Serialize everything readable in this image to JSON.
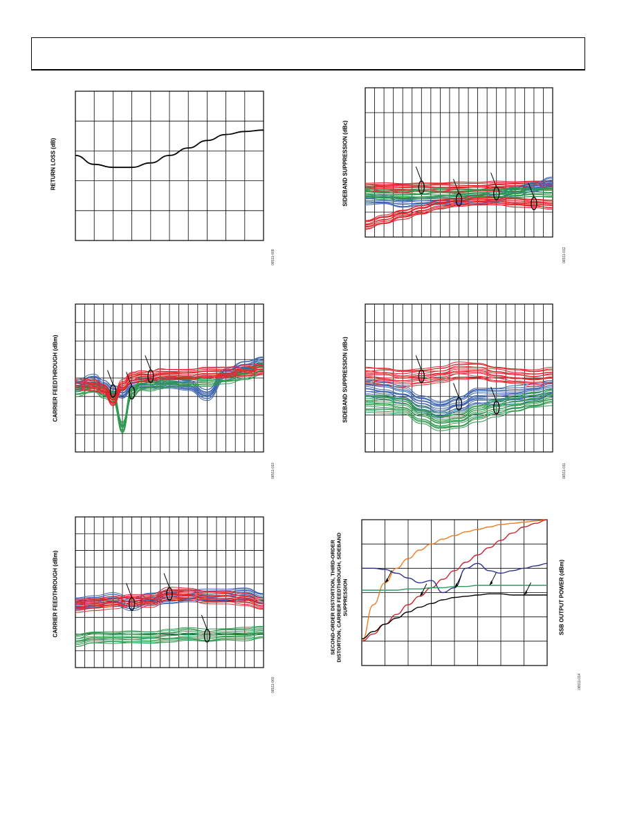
{
  "colors": {
    "red": "#e3242b",
    "blue": "#3f66b0",
    "green": "#2e9a4e",
    "black": "#000000",
    "orange": "#f07a1e",
    "darkred": "#c8232c",
    "navy": "#27318a",
    "teal": "#2f9a62"
  },
  "panels": [
    {
      "id": "return-loss",
      "ylabel": "RETURN LOSS (dB)",
      "figure_id": "06511-009"
    },
    {
      "id": "sideband-1",
      "ylabel": "SIDEBAND SUPPRESSION (dBc)",
      "figure_id": "06511-012"
    },
    {
      "id": "carrier-1",
      "ylabel": "CARRIER FEEDTHROUGH (dBm)",
      "figure_id": "06511-010"
    },
    {
      "id": "sideband-2",
      "ylabel": "SIDEBAND SUPPRESSION (dBc)",
      "figure_id": "06511-011"
    },
    {
      "id": "carrier-2",
      "ylabel": "CARRIER FEEDTHROUGH (dBm)",
      "figure_id": "06511-060"
    },
    {
      "id": "distortion",
      "ylabel": "SECOND-ORDER DISTORTION, THIRD-ORDER DISTORTION, CARRIER FEEDTHROUGH, SIDEBAND SUPPRESSION",
      "ylabel_right": "SSB OUTPUT POWER (dBm)",
      "figure_id": "06511-014"
    }
  ],
  "chart_data": [
    {
      "type": "line",
      "title": "",
      "ylabel": "RETURN LOSS (dB)",
      "xlim": [
        0,
        10
      ],
      "ylim": [
        0,
        5
      ],
      "grid": true,
      "x": [
        0,
        1,
        2,
        3,
        4,
        5,
        6,
        7,
        8,
        9,
        10
      ],
      "series": [
        {
          "color": "#000000",
          "values": [
            2.85,
            2.55,
            2.45,
            2.45,
            2.6,
            2.85,
            3.1,
            3.35,
            3.55,
            3.65,
            3.7
          ]
        }
      ]
    },
    {
      "type": "line",
      "title": "",
      "ylabel": "SIDEBAND SUPPRESSION (dBc)",
      "xlim": [
        0,
        20
      ],
      "ylim": [
        0,
        6
      ],
      "grid": true,
      "x": [
        0,
        2,
        4,
        6,
        8,
        10,
        12,
        14,
        16,
        18,
        20
      ],
      "series": [
        {
          "color": "#e3242b",
          "values": [
            2.0,
            2.0,
            2.0,
            2.0,
            2.0,
            2.0,
            2.0,
            2.05,
            2.05,
            2.1,
            2.1
          ]
        },
        {
          "color": "#3f66b0",
          "values": [
            1.5,
            1.5,
            1.4,
            1.45,
            1.5,
            1.5,
            1.55,
            1.6,
            1.8,
            2.0,
            2.2
          ]
        },
        {
          "color": "#2e9a4e",
          "values": [
            1.75,
            1.7,
            1.7,
            1.7,
            1.75,
            1.7,
            1.75,
            1.75,
            1.75,
            1.8,
            1.8
          ]
        },
        {
          "color": "#e3242b",
          "values": [
            0.5,
            0.7,
            0.9,
            1.1,
            1.3,
            1.4,
            1.45,
            1.45,
            1.4,
            1.35,
            1.3
          ]
        }
      ]
    },
    {
      "type": "line",
      "title": "",
      "ylabel": "CARRIER FEEDTHROUGH (dBm)",
      "xlim": [
        0,
        20
      ],
      "ylim": [
        0,
        8
      ],
      "grid": true,
      "x": [
        0,
        2,
        3,
        4,
        5,
        6,
        7,
        8,
        9,
        10,
        12,
        14,
        16,
        18,
        20
      ],
      "series": [
        {
          "color": "#3f66b0",
          "values": [
            3.6,
            3.9,
            3.6,
            3.3,
            3.2,
            3.6,
            3.7,
            3.7,
            3.7,
            3.7,
            3.6,
            3.1,
            4.2,
            4.6,
            4.9
          ]
        },
        {
          "color": "#2e9a4e",
          "values": [
            3.3,
            3.5,
            3.2,
            3.0,
            1.3,
            3.2,
            3.6,
            3.6,
            3.7,
            3.8,
            3.8,
            3.8,
            4.0,
            4.2,
            4.5
          ]
        },
        {
          "color": "#e3242b",
          "values": [
            3.7,
            3.6,
            3.4,
            2.8,
            3.6,
            4.0,
            4.1,
            4.1,
            4.2,
            4.2,
            4.2,
            4.3,
            4.3,
            4.4,
            4.5
          ]
        }
      ]
    },
    {
      "type": "line",
      "title": "",
      "ylabel": "SIDEBAND SUPPRESSION (dBc)",
      "xlim": [
        0,
        20
      ],
      "ylim": [
        0,
        8
      ],
      "grid": true,
      "x": [
        0,
        2,
        4,
        6,
        8,
        10,
        12,
        14,
        16,
        18,
        20
      ],
      "series": [
        {
          "color": "#e3242b",
          "values": [
            4.1,
            4.1,
            4.0,
            4.1,
            4.2,
            4.4,
            4.4,
            4.2,
            4.1,
            4.0,
            4.1
          ]
        },
        {
          "color": "#3f66b0",
          "values": [
            3.4,
            3.3,
            3.1,
            2.6,
            2.3,
            2.6,
            3.0,
            3.0,
            3.1,
            3.2,
            3.4
          ]
        },
        {
          "color": "#2e9a4e",
          "values": [
            2.6,
            2.6,
            2.5,
            2.0,
            1.6,
            1.7,
            2.1,
            2.4,
            2.6,
            2.8,
            3.0
          ]
        }
      ]
    },
    {
      "type": "line",
      "title": "",
      "ylabel": "CARRIER FEEDTHROUGH (dBm)",
      "xlim": [
        0,
        20
      ],
      "ylim": [
        0,
        9
      ],
      "grid": true,
      "x": [
        0,
        2,
        4,
        6,
        8,
        10,
        12,
        14,
        16,
        18,
        20
      ],
      "series": [
        {
          "color": "#3f66b0",
          "values": [
            3.8,
            3.9,
            4.1,
            3.8,
            4.1,
            4.2,
            4.3,
            4.3,
            4.3,
            4.4,
            4.1
          ]
        },
        {
          "color": "#e3242b",
          "values": [
            3.7,
            3.8,
            3.9,
            4.0,
            4.0,
            4.4,
            4.4,
            4.2,
            4.2,
            4.1,
            3.8
          ]
        },
        {
          "color": "#2e9a4e",
          "values": [
            1.6,
            1.8,
            1.8,
            1.8,
            1.8,
            1.9,
            2.0,
            1.9,
            2.0,
            2.0,
            2.1
          ]
        }
      ]
    },
    {
      "type": "line",
      "title": "",
      "ylabel": "SECOND-ORDER DISTORTION, THIRD-ORDER DISTORTION, CARRIER FEEDTHROUGH, SIDEBAND SUPPRESSION",
      "ylabel_right": "SSB OUTPUT POWER (dBm)",
      "xlim": [
        0,
        8
      ],
      "ylim": [
        0,
        6
      ],
      "grid": true,
      "x": [
        0,
        0.5,
        1,
        1.5,
        2,
        2.5,
        3,
        3.5,
        4,
        4.5,
        5,
        5.5,
        6,
        6.5,
        7,
        7.5,
        8
      ],
      "series": [
        {
          "color": "#f07a1e",
          "values": [
            1.0,
            2.5,
            3.4,
            4.0,
            4.4,
            4.75,
            5.0,
            5.2,
            5.35,
            5.5,
            5.6,
            5.7,
            5.8,
            5.85,
            5.9,
            5.95,
            6.0
          ]
        },
        {
          "color": "#c8232c",
          "values": [
            1.0,
            1.3,
            1.7,
            2.1,
            2.5,
            2.85,
            3.2,
            3.55,
            3.9,
            4.25,
            4.55,
            4.85,
            5.15,
            5.45,
            5.7,
            5.85,
            6.0
          ]
        },
        {
          "color": "#27318a",
          "values": [
            4.0,
            4.0,
            3.95,
            3.8,
            3.6,
            3.4,
            3.5,
            3.0,
            3.2,
            4.0,
            4.2,
            3.9,
            3.8,
            3.9,
            4.0,
            4.1,
            4.2
          ]
        },
        {
          "color": "#2f9a62",
          "values": [
            3.1,
            3.1,
            3.1,
            3.1,
            3.15,
            3.15,
            3.2,
            3.2,
            3.25,
            3.25,
            3.3,
            3.3,
            3.3,
            3.3,
            3.3,
            3.3,
            3.3
          ]
        },
        {
          "color": "#000000",
          "values": [
            1.1,
            1.4,
            1.7,
            1.95,
            2.2,
            2.4,
            2.55,
            2.7,
            2.8,
            2.85,
            2.9,
            2.95,
            2.95,
            2.9,
            2.9,
            2.9,
            2.9
          ]
        }
      ]
    }
  ]
}
